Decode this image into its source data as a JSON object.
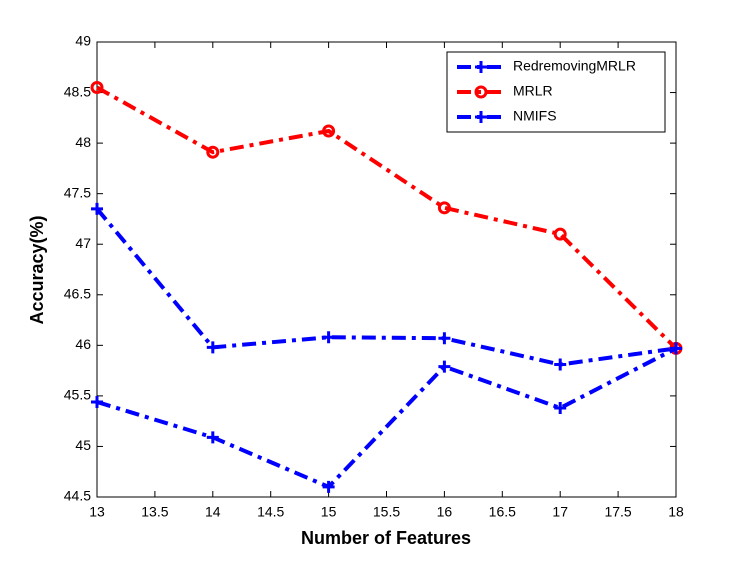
{
  "chart_data": {
    "type": "line",
    "x_label": "Number of Features",
    "y_label": "Accuracy(%)",
    "x": [
      13,
      14,
      15,
      16,
      17,
      18
    ],
    "series": [
      {
        "name": "RedremovingMRLR",
        "color": "#0000ff",
        "marker": "plus",
        "values": [
          47.35,
          45.98,
          46.08,
          46.07,
          45.81,
          45.97
        ]
      },
      {
        "name": "MRLR",
        "color": "#ff0000",
        "marker": "circle",
        "values": [
          48.55,
          47.91,
          48.12,
          47.36,
          47.1,
          45.97
        ]
      },
      {
        "name": "NMIFS",
        "color": "#0000ff",
        "marker": "plus",
        "values": [
          45.44,
          45.09,
          44.6,
          45.79,
          45.38,
          45.97
        ]
      }
    ],
    "xlim": [
      13,
      18
    ],
    "xticks": [
      13,
      13.5,
      14,
      14.5,
      15,
      15.5,
      16,
      16.5,
      17,
      17.5,
      18
    ],
    "ylim": [
      44.5,
      49
    ],
    "yticks": [
      44.5,
      45,
      45.5,
      46,
      46.5,
      47,
      47.5,
      48,
      48.5,
      49
    ],
    "grid": false,
    "legend": "northeast"
  }
}
